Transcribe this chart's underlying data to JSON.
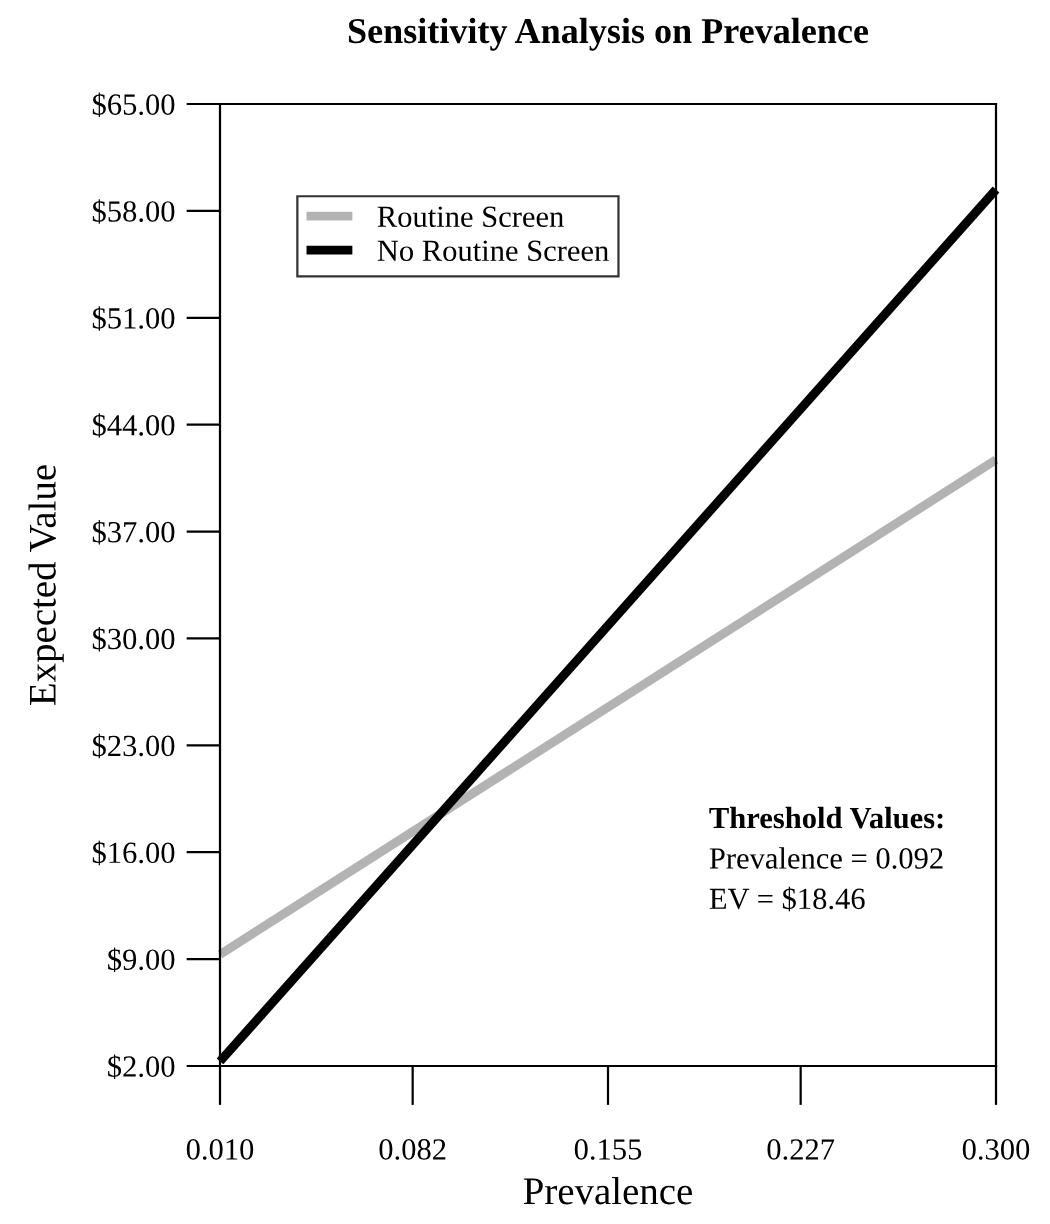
{
  "chart_data": {
    "type": "line",
    "title": "Sensitivity Analysis on Prevalence",
    "xlabel": "Prevalence",
    "ylabel": "Expected Value",
    "x": [
      0.01,
      0.3
    ],
    "series": [
      {
        "name": "Routine Screen",
        "color": "#b3b3b3",
        "values": [
          9.3,
          41.7
        ]
      },
      {
        "name": "No Routine Screen",
        "color": "#000000",
        "values": [
          2.3,
          59.4
        ]
      }
    ],
    "xlim": [
      0.01,
      0.3
    ],
    "xticks": [
      {
        "value": 0.01,
        "label": "0.010"
      },
      {
        "value": 0.082,
        "label": "0.082"
      },
      {
        "value": 0.155,
        "label": "0.155"
      },
      {
        "value": 0.227,
        "label": "0.227"
      },
      {
        "value": 0.3,
        "label": "0.300"
      }
    ],
    "ylim": [
      2,
      65
    ],
    "yticks": [
      {
        "value": 2,
        "label": "$2.00"
      },
      {
        "value": 9,
        "label": "$9.00"
      },
      {
        "value": 16,
        "label": "$16.00"
      },
      {
        "value": 23,
        "label": "$23.00"
      },
      {
        "value": 30,
        "label": "$30.00"
      },
      {
        "value": 37,
        "label": "$37.00"
      },
      {
        "value": 44,
        "label": "$44.00"
      },
      {
        "value": 51,
        "label": "$51.00"
      },
      {
        "value": 58,
        "label": "$58.00"
      },
      {
        "value": 65,
        "label": "$65.00"
      }
    ],
    "annotations": [
      "Threshold Values:",
      "Prevalence = 0.092",
      "EV = $18.46"
    ],
    "legend": "top left",
    "grid": false,
    "marker": "none",
    "line_style": "solid"
  }
}
